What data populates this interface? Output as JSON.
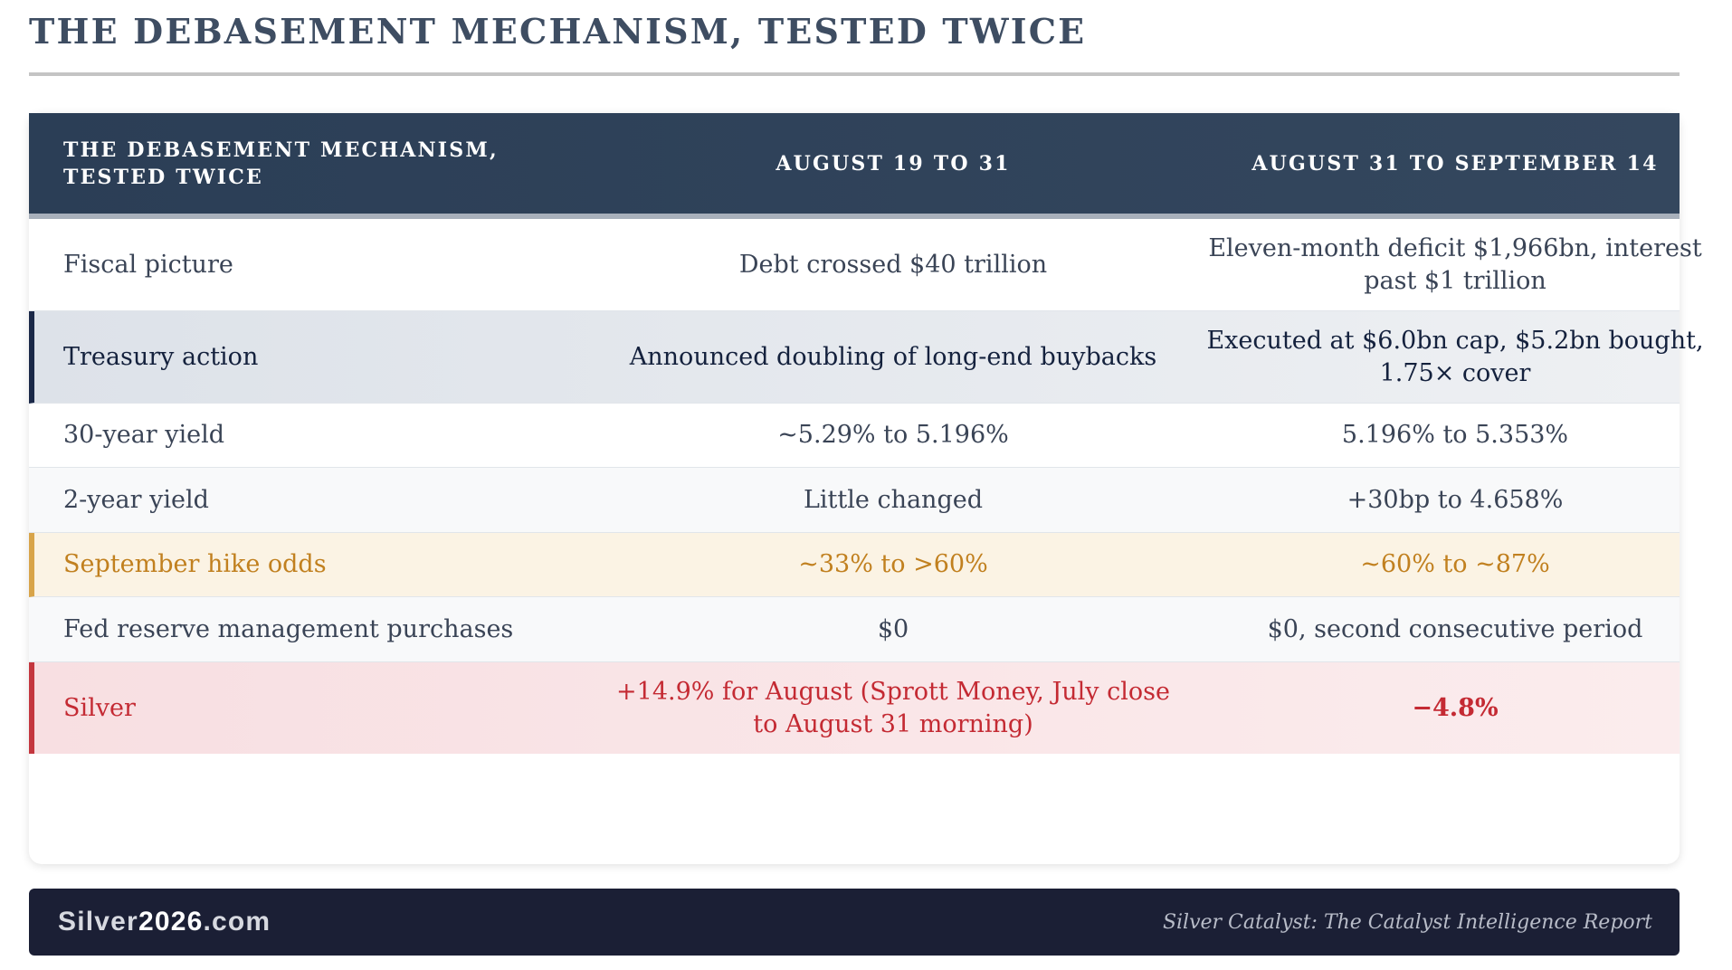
{
  "page_title": "THE DEBASEMENT MECHANISM, TESTED TWICE",
  "table": {
    "headers": [
      "THE DEBASEMENT MECHANISM, TESTED TWICE",
      "AUGUST 19 TO 31",
      "AUGUST 31 TO SEPTEMBER 14"
    ],
    "rows": [
      {
        "label": "Fiscal picture",
        "period_1": "Debt crossed $40 trillion",
        "period_2": "Eleven-month deficit $1,966bn, interest past $1 trillion",
        "style": "plain"
      },
      {
        "label": "Treasury action",
        "period_1": "Announced doubling of long-end buybacks",
        "period_2": "Executed at $6.0bn cap, $5.2bn bought, 1.75× cover",
        "style": "highlight-navy"
      },
      {
        "label": "30-year yield",
        "period_1": "~5.29% to 5.196%",
        "period_2": "5.196% to 5.353%",
        "style": "plain"
      },
      {
        "label": "2-year yield",
        "period_1": "Little changed",
        "period_2": "+30bp to 4.658%",
        "style": "alternate"
      },
      {
        "label": "September hike odds",
        "period_1": "~33% to >60%",
        "period_2": "~60% to ~87%",
        "style": "highlight-gold"
      },
      {
        "label": "Fed reserve management purchases",
        "period_1": "$0",
        "period_2": "$0, second consecutive period",
        "style": "alternate"
      },
      {
        "label": "Silver",
        "period_1": "+14.9% for August (Sprott Money, July close to August 31 morning)",
        "period_2": "−4.8%",
        "style": "highlight-red"
      }
    ]
  },
  "footer": {
    "brand_prefix": "Silver",
    "brand_strong": "2026",
    "brand_suffix": ".com",
    "tagline": "Silver Catalyst: The Catalyst Intelligence Report"
  },
  "colors": {
    "header_bg": "#2b3e56",
    "navy_accent": "#1a2848",
    "gold_accent": "#d8a449",
    "red_accent": "#c4363e",
    "footer_bg": "#1b1f35"
  }
}
